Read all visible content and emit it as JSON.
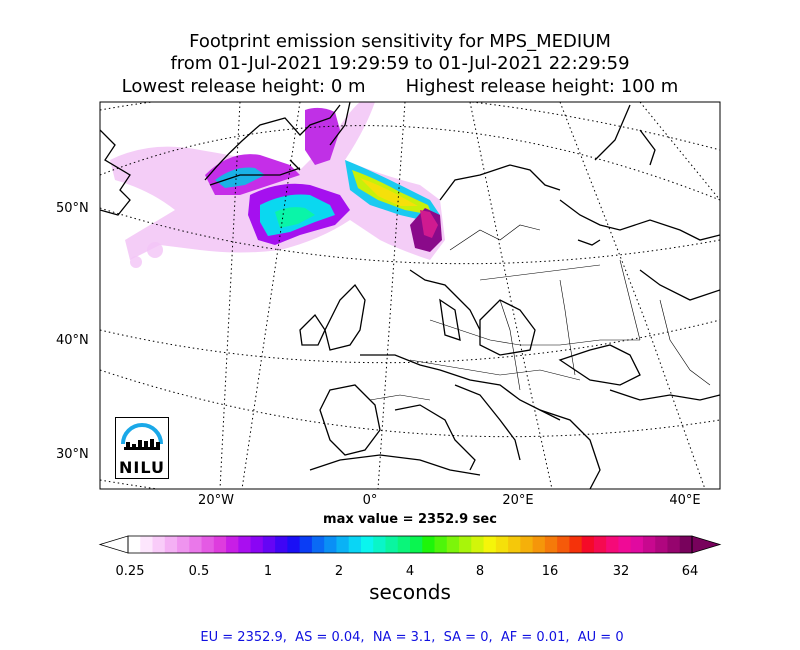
{
  "title": {
    "line1": "Footprint emission sensitivity for MPS_MEDIUM",
    "line2": "from 01-Jul-2021 19:29:59 to 01-Jul-2021 22:29:59",
    "line3": "Lowest release height: 0 m       Highest release height: 100 m"
  },
  "map": {
    "lat_labels": [
      "50°N",
      "40°N",
      "30°N"
    ],
    "lon_labels": [
      "20°W",
      "0°",
      "20°E",
      "40°E"
    ],
    "max_value_text": "max value = 2352.9 sec",
    "logo_text": "NILU"
  },
  "colorbar": {
    "ticks": [
      "0.25",
      "0.5",
      "1",
      "2",
      "4",
      "8",
      "16",
      "32",
      "64"
    ],
    "label": "seconds",
    "colors": [
      "#ffffff",
      "#fde6fd",
      "#f9ccf9",
      "#f4b0f4",
      "#ef94ef",
      "#ea78ea",
      "#e45ae4",
      "#de3cde",
      "#c81ee6",
      "#a90ef0",
      "#8a05f4",
      "#6505f5",
      "#3f05f5",
      "#1a0ff5",
      "#0a3df5",
      "#0a6af5",
      "#0a8ff5",
      "#0ab2f5",
      "#0ad5f5",
      "#0af5ee",
      "#0af5c8",
      "#0af5a0",
      "#0af57a",
      "#0af550",
      "#1ef50a",
      "#4ef50a",
      "#7cf50a",
      "#a8f50a",
      "#d2f50a",
      "#f5f50a",
      "#f5e00a",
      "#f5c80a",
      "#f5b00a",
      "#f5960a",
      "#f57a0a",
      "#f55a0a",
      "#f5320a",
      "#f50a28",
      "#f50a50",
      "#f50a78",
      "#f00a96",
      "#e00aa0",
      "#c8088f",
      "#b0067f",
      "#96046e",
      "#78025c"
    ]
  },
  "region_stats": "EU = 2352.9,  AS = 0.04,  NA = 3.1,  SA = 0,  AF = 0.01,  AU = 0"
}
